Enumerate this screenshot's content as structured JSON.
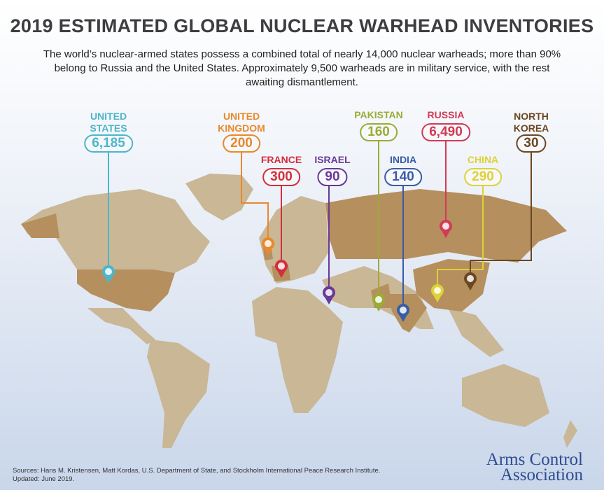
{
  "title": "2019 ESTIMATED GLOBAL NUCLEAR WARHEAD INVENTORIES",
  "subtitle": "The world’s nuclear-armed states possess a combined total of nearly 14,000 nuclear warheads; more than 90% belong to Russia and the United States. Approximately 9,500 warheads are in military service, with the rest awaiting dismantlement.",
  "countries": [
    {
      "name": "UNITED STATES",
      "value": "6,185",
      "color": "#4db6c9"
    },
    {
      "name": "UNITED KINGDOM",
      "value": "200",
      "color": "#e8892c"
    },
    {
      "name": "FRANCE",
      "value": "300",
      "color": "#d22f3c"
    },
    {
      "name": "ISRAEL",
      "value": "90",
      "color": "#6a3896"
    },
    {
      "name": "PAKISTAN",
      "value": "160",
      "color": "#9bab38"
    },
    {
      "name": "INDIA",
      "value": "140",
      "color": "#3a5ca6"
    },
    {
      "name": "RUSSIA",
      "value": "6,490",
      "color": "#d23a55"
    },
    {
      "name": "CHINA",
      "value": "290",
      "color": "#ddd236"
    },
    {
      "name": "NORTH KOREA",
      "value": "30",
      "color": "#6b4722"
    }
  ],
  "map_colors": {
    "land": "#c9b796",
    "nuclear_state": "#b58f5e"
  },
  "footer": {
    "sources": "Sources: Hans M. Kristensen, Matt Kordas, U.S. Department of State, and Stockholm International Peace Research Institute.",
    "updated": "Updated: June 2019."
  },
  "logo": {
    "line1": "Arms Control",
    "line2": "Association"
  }
}
